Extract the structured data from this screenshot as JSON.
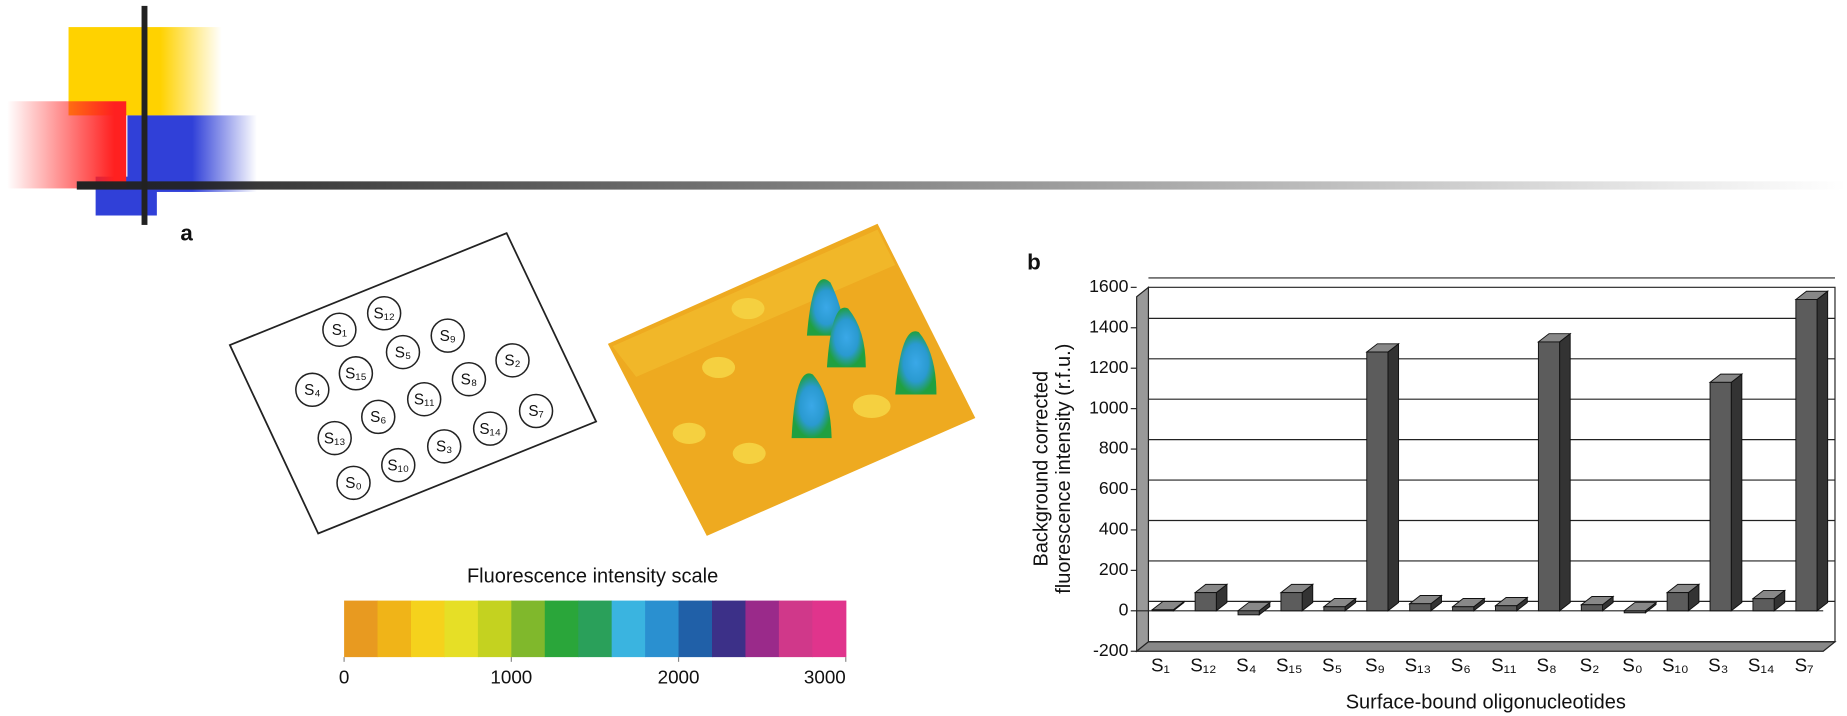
{
  "panel_a": {
    "label": "a",
    "spots": [
      "S₁",
      "S₁₂",
      "S₉",
      "S₅",
      "S₂",
      "S₁₅",
      "S₈",
      "S₄",
      "S₁₁",
      "S₇",
      "S₆",
      "S₁₃",
      "S₁₄",
      "S₃",
      "S₁₀",
      "S₀"
    ],
    "colorbar": {
      "title": "Fluorescence intensity scale",
      "colors": [
        "#e89a20",
        "#f0b418",
        "#f5d21c",
        "#e6df26",
        "#c4d220",
        "#80b82c",
        "#2aa63a",
        "#2aa05a",
        "#3ab4e0",
        "#2a90d0",
        "#2060a8",
        "#3c3088",
        "#9a2a8a",
        "#d0388a",
        "#e0348c"
      ],
      "xlim": [
        0,
        3000
      ],
      "xticks": [
        0,
        1000,
        2000,
        3000
      ]
    }
  },
  "chart_data": {
    "type": "bar",
    "label": "b",
    "y_label": [
      "Background corrected",
      "fluorescence intensity (r.f.u.)"
    ],
    "x_label": "Surface-bound oligonucleotides",
    "categories": [
      "S₁",
      "S₁₂",
      "S₄",
      "S₁₅",
      "S₅",
      "S₉",
      "S₁₃",
      "S₆",
      "S₁₁",
      "S₈",
      "S₂",
      "S₀",
      "S₁₀",
      "S₃",
      "S₁₄",
      "S₇"
    ],
    "values": [
      5,
      90,
      -20,
      90,
      20,
      1280,
      35,
      20,
      25,
      1330,
      30,
      -10,
      90,
      1130,
      60,
      1540
    ],
    "color": "#5c5c5c",
    "ylim": [
      -200,
      1600
    ],
    "yticks": [
      -200,
      0,
      200,
      400,
      600,
      800,
      1000,
      1200,
      1400,
      1600
    ],
    "grid": true
  }
}
